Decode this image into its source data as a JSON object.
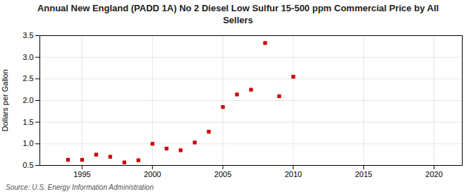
{
  "chart_data": {
    "type": "scatter",
    "title": "Annual New England (PADD 1A) No 2 Diesel Low Sulfur 15-500 ppm Commercial Price by All\nSellers",
    "ylabel": "Dollars per Gallon",
    "source": "Source: U.S. Energy Information Administration",
    "x": [
      1994,
      1995,
      1996,
      1997,
      1998,
      1999,
      2000,
      2001,
      2002,
      2003,
      2004,
      2005,
      2006,
      2007,
      2008,
      2009,
      2010
    ],
    "values": [
      0.63,
      0.63,
      0.75,
      0.7,
      0.57,
      0.62,
      1.0,
      0.89,
      0.85,
      1.03,
      1.28,
      1.85,
      2.14,
      2.25,
      3.33,
      2.1,
      2.55
    ],
    "color": "#cc0000",
    "marker": "square",
    "xlim": [
      1992,
      2022
    ],
    "ylim": [
      0.5,
      3.5
    ],
    "xticks": [
      1995,
      2000,
      2005,
      2010,
      2015,
      2020
    ],
    "yticks": [
      0.5,
      {
        "value": 1.0,
        "label": "1.0"
      },
      1.5,
      {
        "value": 2.0,
        "label": "2.0"
      },
      2.5,
      {
        "value": 3.0,
        "label": "3.0"
      },
      3.5
    ],
    "grid": true
  }
}
